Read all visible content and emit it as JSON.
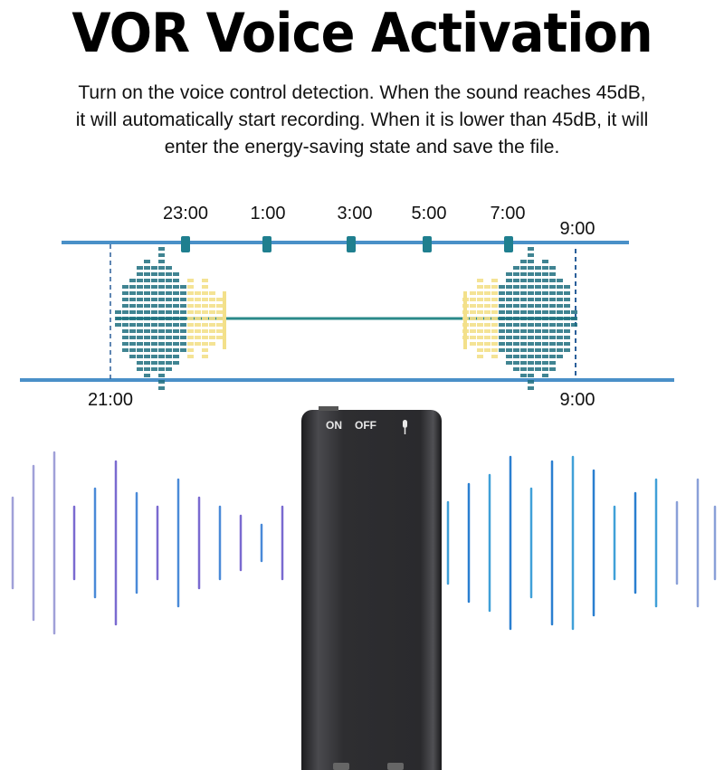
{
  "title": "VOR Voice Activation",
  "description": [
    "Turn on the voice control detection. When the sound reaches 45dB,",
    "it will automatically start recording. When it is lower than 45dB, it will",
    "enter the energy-saving state and save the file."
  ],
  "timeline": {
    "top_labels": [
      "23:00",
      "1:00",
      "3:00",
      "5:00",
      "7:00"
    ],
    "top_end_label": "9:00",
    "bottom_start_label": "21:00",
    "bottom_end_label": "9:00"
  },
  "device": {
    "on_label": "ON",
    "off_label": "OFF",
    "mic_icon": "microphone-icon"
  },
  "colors": {
    "timeline": "#4a90c8",
    "tick": "#1f7f8f",
    "eq_dark": "#1f6f7f",
    "eq_light": "#f3e08a",
    "device": "#2b2b2e",
    "wave_left": "#6a6ad0",
    "wave_right": "#2a8fd0"
  }
}
